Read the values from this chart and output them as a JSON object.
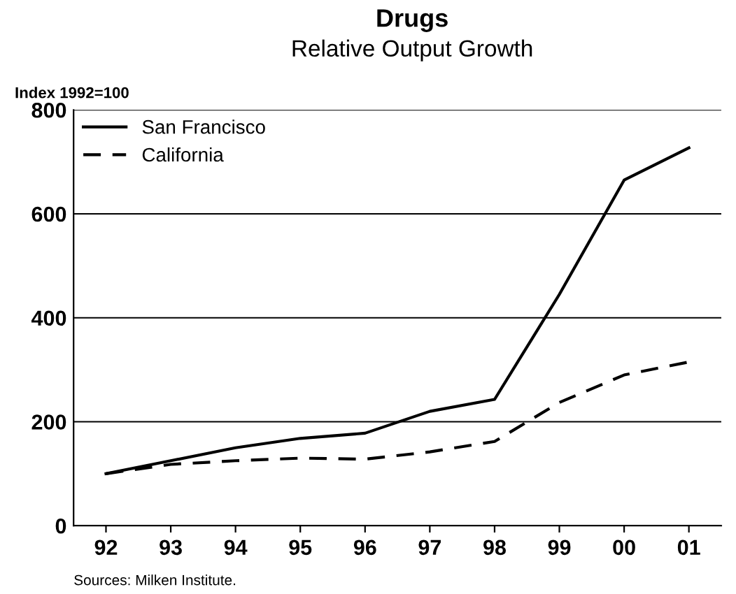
{
  "chart_data": {
    "type": "line",
    "title": "Drugs",
    "subtitle": "Relative Output Growth",
    "ylabel": "Index 1992=100",
    "categories": [
      "92",
      "93",
      "94",
      "95",
      "96",
      "97",
      "98",
      "99",
      "00",
      "01"
    ],
    "series": [
      {
        "name": "San Francisco",
        "color": "#000000",
        "line_style": "solid",
        "values": [
          100,
          125,
          150,
          168,
          178,
          220,
          243,
          445,
          665,
          727
        ]
      },
      {
        "name": "California",
        "color": "#000000",
        "line_style": "dashed",
        "values": [
          100,
          118,
          125,
          130,
          128,
          142,
          162,
          237,
          290,
          315
        ]
      }
    ],
    "ylim": [
      0,
      800
    ],
    "yticks": [
      0,
      200,
      400,
      600,
      800
    ],
    "grid": "y",
    "legend": "top left",
    "annotations": [
      "Sources: Milken Institute."
    ]
  }
}
